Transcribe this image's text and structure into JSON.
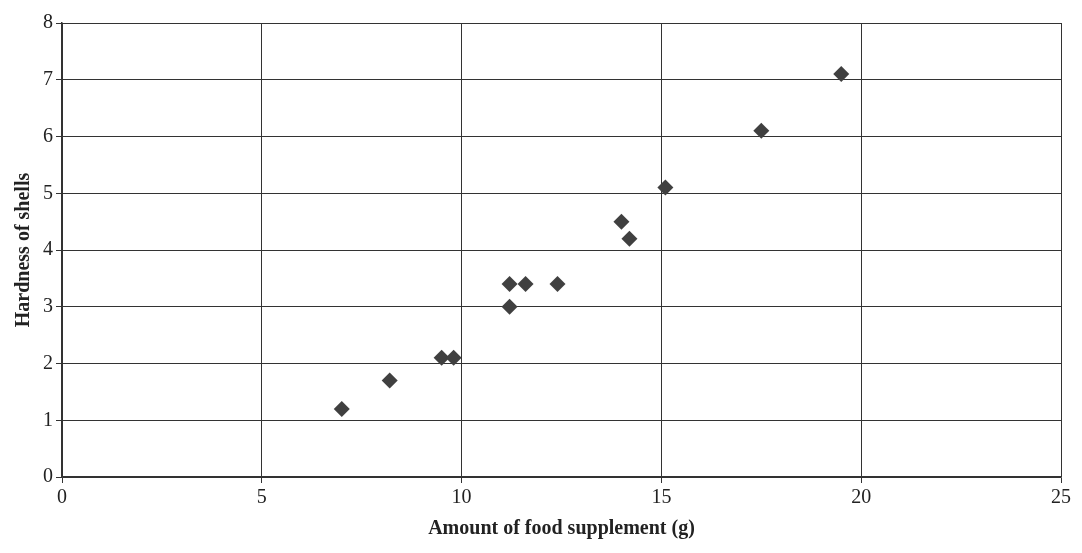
{
  "chart_data": {
    "type": "scatter",
    "xlabel": "Amount of food supplement (g)",
    "ylabel": "Hardness of shells",
    "x": [
      7,
      8.2,
      9.5,
      9.8,
      11.2,
      11.2,
      11.6,
      12.4,
      14,
      14.2,
      15.1,
      17.5,
      19.5
    ],
    "series": [
      {
        "color": "#404040",
        "values": [
          1.2,
          1.7,
          2.1,
          2.1,
          3.4,
          3.0,
          3.4,
          3.4,
          4.5,
          4.2,
          5.1,
          6.1,
          7.1
        ]
      }
    ],
    "xlim": [
      0,
      25
    ],
    "xticks": [
      0,
      5,
      10,
      15,
      20,
      25
    ],
    "ylim": [
      0,
      8
    ],
    "yticks": [
      0,
      1,
      2,
      3,
      4,
      5,
      6,
      7,
      8
    ],
    "grid": true,
    "legend": false,
    "marker": "diamond"
  }
}
